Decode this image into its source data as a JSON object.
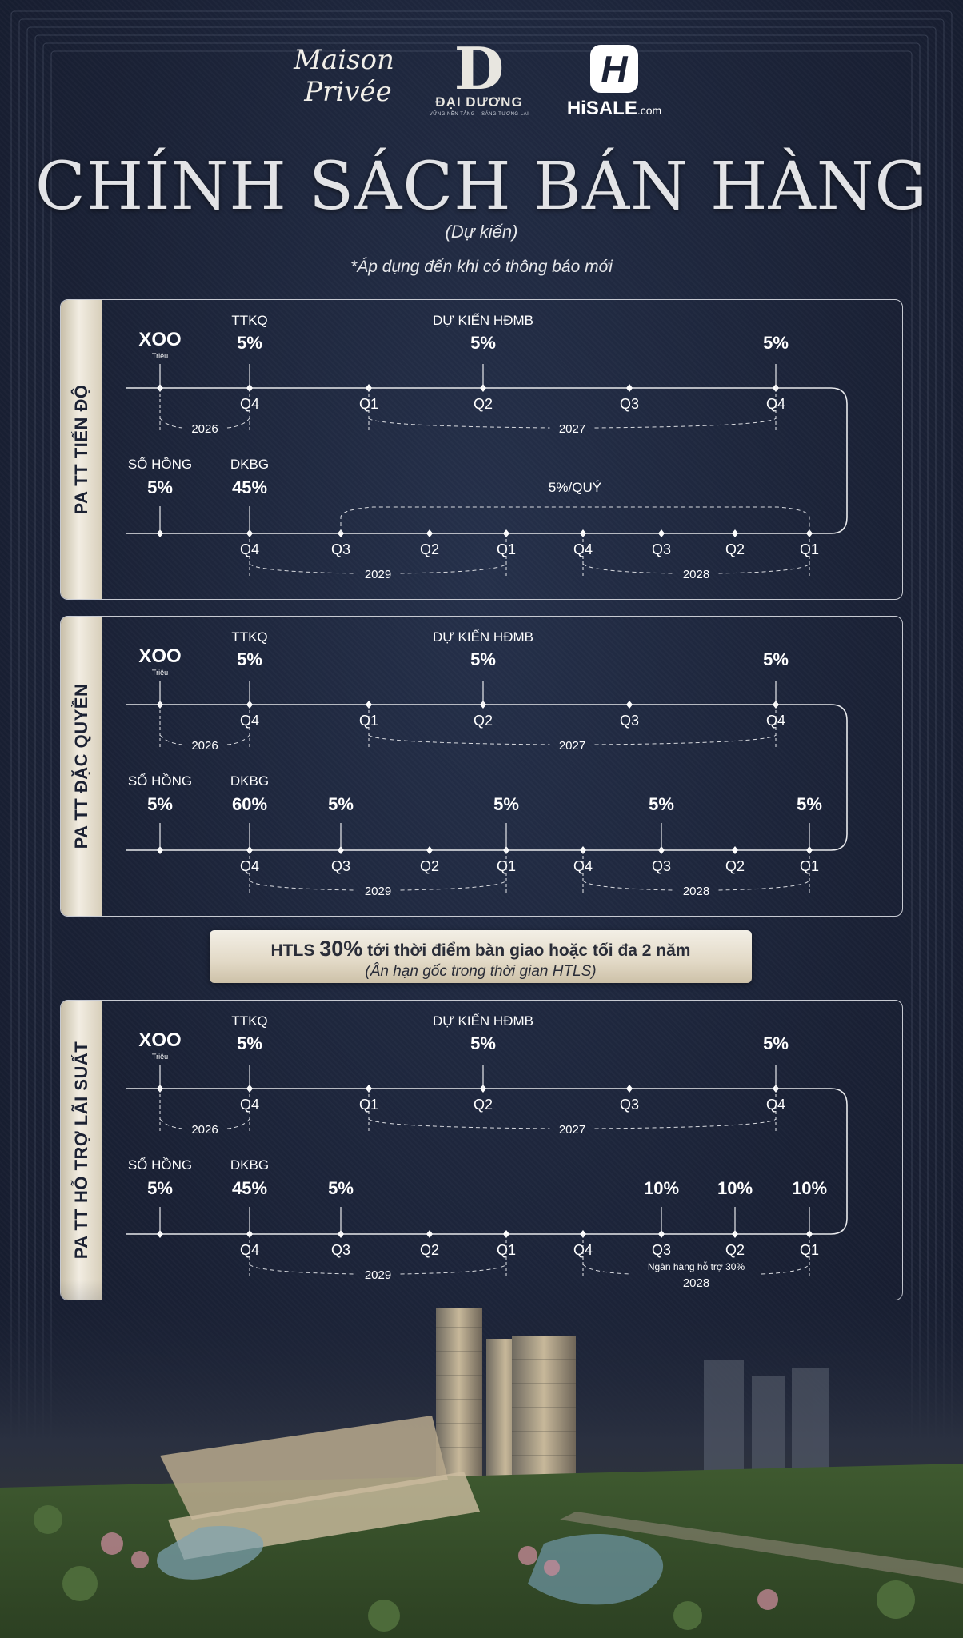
{
  "logos": {
    "maison_line1": "Maison",
    "maison_line2": "Privée",
    "daiduong_letter": "D",
    "daiduong_name": "ĐẠI DƯƠNG",
    "daiduong_tagline": "VỮNG NỀN TẢNG – SÁNG TƯƠNG LAI",
    "hisale_icon": "H",
    "hisale_name": "HiSALE",
    "hisale_suffix": ".com"
  },
  "title": "CHÍNH SÁCH BÁN HÀNG",
  "subtitle": "(Dự kiến)",
  "note": "*Áp dụng đến khi có thông báo mới",
  "colors": {
    "background": "#1b2236",
    "line": "#e8e9ec",
    "tab_gold": "#e9e2d2",
    "text": "#ffffff"
  },
  "panels": [
    {
      "name": "PA TT TIẾN ĐỘ",
      "row1": {
        "headers": [
          "TTKQ",
          "DỰ KIẾN HĐMB"
        ],
        "start_label": "XOO",
        "start_sub": "Triệu",
        "values": [
          "5%",
          "5%",
          "5%"
        ],
        "quarters": [
          "Q4",
          "Q1",
          "Q2",
          "Q3",
          "Q4"
        ],
        "years": [
          "2026",
          "2027"
        ]
      },
      "row2": {
        "headers": [
          "SỔ HỒNG",
          "DKBG"
        ],
        "values": [
          "5%",
          "45%"
        ],
        "span_label": "5%/QUÝ",
        "quarters": [
          "Q4",
          "Q3",
          "Q2",
          "Q1",
          "Q4",
          "Q3",
          "Q2",
          "Q1"
        ],
        "years": [
          "2029",
          "2028"
        ]
      }
    },
    {
      "name": "PA TT ĐẶC QUYỀN",
      "row1": {
        "headers": [
          "TTKQ",
          "DỰ KIẾN HĐMB"
        ],
        "start_label": "XOO",
        "start_sub": "Triệu",
        "values": [
          "5%",
          "5%",
          "5%"
        ],
        "quarters": [
          "Q4",
          "Q1",
          "Q2",
          "Q3",
          "Q4"
        ],
        "years": [
          "2026",
          "2027"
        ]
      },
      "row2": {
        "headers": [
          "SỔ HỒNG",
          "DKBG"
        ],
        "values": [
          "5%",
          "60%",
          "5%",
          "5%",
          "5%",
          "5%"
        ],
        "quarters": [
          "Q4",
          "Q3",
          "Q2",
          "Q1",
          "Q4",
          "Q3",
          "Q2",
          "Q1"
        ],
        "years": [
          "2029",
          "2028"
        ]
      }
    },
    {
      "name": "PA TT HỖ TRỢ LÃI SUẤT",
      "row1": {
        "headers": [
          "TTKQ",
          "DỰ KIẾN HĐMB"
        ],
        "start_label": "XOO",
        "start_sub": "Triệu",
        "values": [
          "5%",
          "5%",
          "5%"
        ],
        "quarters": [
          "Q4",
          "Q1",
          "Q2",
          "Q3",
          "Q4"
        ],
        "years": [
          "2026",
          "2027"
        ]
      },
      "row2": {
        "headers": [
          "SỔ HỒNG",
          "DKBG"
        ],
        "values": [
          "5%",
          "45%",
          "5%",
          "10%",
          "10%",
          "10%"
        ],
        "bank_note": "Ngân hàng hỗ trợ 30%",
        "quarters": [
          "Q4",
          "Q3",
          "Q2",
          "Q1",
          "Q4",
          "Q3",
          "Q2",
          "Q1"
        ],
        "years": [
          "2029",
          "2028"
        ]
      }
    }
  ],
  "htls": {
    "prefix": "HTLS ",
    "percent": "30%",
    "suffix": " tới thời điểm bàn giao hoặc tối đa 2 năm",
    "line2": "(Ân hạn gốc trong thời gian HTLS)"
  }
}
